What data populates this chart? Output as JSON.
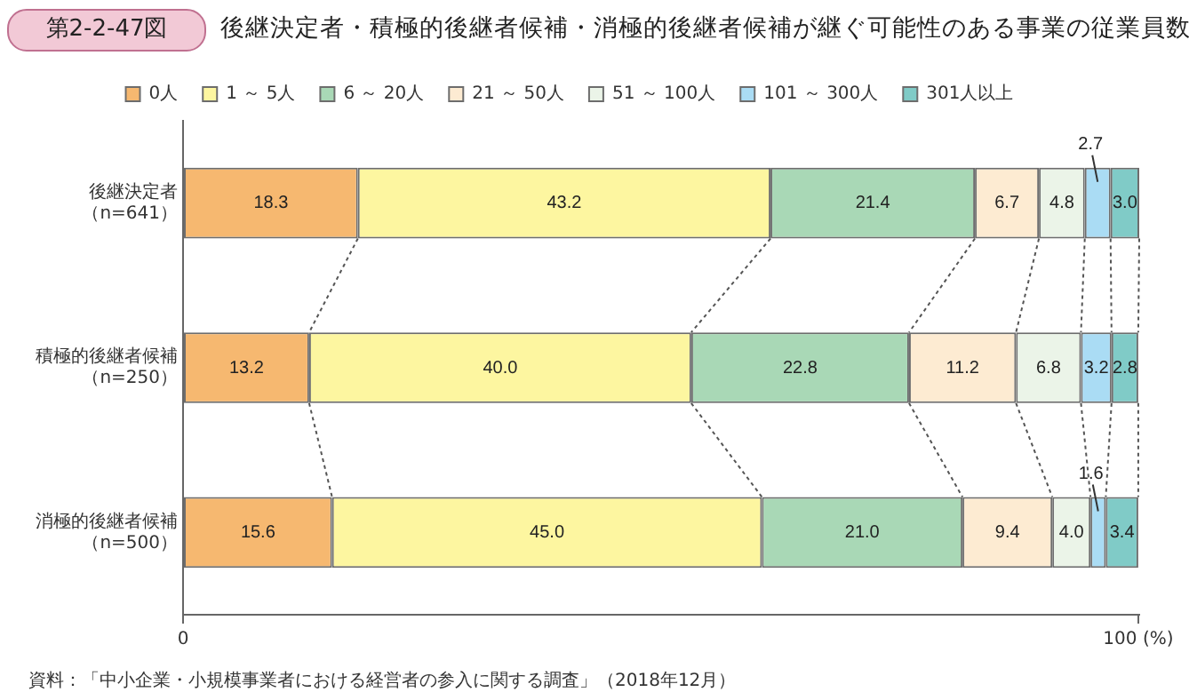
{
  "chart_data": {
    "type": "bar",
    "orientation": "horizontal",
    "stacked": true,
    "title": "後継決定者・積極的後継者候補・消極的後継者候補が継ぐ可能性のある事業の従業員数",
    "categories": [
      "後継決定者（n=641）",
      "積極的後継者候補（n=250）",
      "消極的後継者候補（n=500）"
    ],
    "series": [
      {
        "name": "0人",
        "color": "#f6b870",
        "values": [
          18.3,
          13.2,
          15.6
        ],
        "value_labels": [
          "18.3",
          "13.2",
          "15.6"
        ]
      },
      {
        "name": "1 ～ 5人",
        "color": "#fdf6a0",
        "values": [
          43.2,
          40.0,
          45.0
        ],
        "value_labels": [
          "43.2",
          "40.0",
          "45.0"
        ]
      },
      {
        "name": "6 ～ 20人",
        "color": "#a9d8b6",
        "values": [
          21.4,
          22.8,
          21.0
        ],
        "value_labels": [
          "21.4",
          "22.8",
          "21.0"
        ]
      },
      {
        "name": "21 ～ 50人",
        "color": "#fdebd2",
        "values": [
          6.7,
          11.2,
          9.4
        ],
        "value_labels": [
          "6.7",
          "11.2",
          "9.4"
        ]
      },
      {
        "name": "51 ～ 100人",
        "color": "#ebf4e8",
        "values": [
          4.8,
          6.8,
          4.0
        ],
        "value_labels": [
          "4.8",
          "6.8",
          "4.0"
        ]
      },
      {
        "name": "101 ～ 300人",
        "color": "#aadcf4",
        "values": [
          2.7,
          3.2,
          1.6
        ],
        "value_labels": [
          "2.7",
          "3.2",
          "1.6"
        ]
      },
      {
        "name": "301人以上",
        "color": "#80cbc7",
        "values": [
          3.0,
          2.8,
          3.4
        ],
        "value_labels": [
          "3.0",
          "2.8",
          "3.4"
        ]
      }
    ],
    "xlim": [
      0,
      100.1
    ],
    "xticks": [
      0,
      {
        "value": 100,
        "label": "100 (%)"
      }
    ],
    "grid": false,
    "legend": "top",
    "annotations": [
      "第2-2-47図",
      "資料：「中小企業・小規模事業者における経営者の参入に関する調査」（2018年12月）"
    ]
  }
}
